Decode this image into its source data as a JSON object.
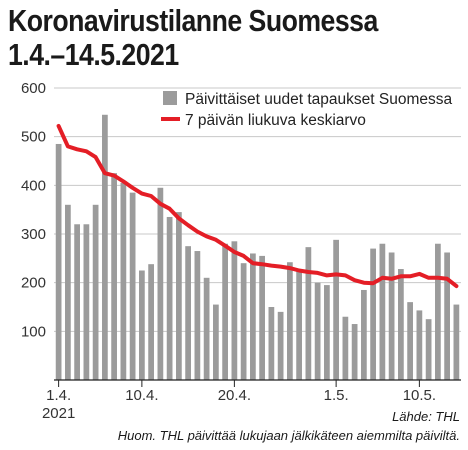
{
  "chart_data": {
    "type": "bar",
    "title_line1": "Koronavirustilanne Suomessa",
    "title_line2": "1.4.–14.5.2021",
    "yticks": [
      100,
      200,
      300,
      400,
      500,
      600
    ],
    "ylim": [
      0,
      600
    ],
    "xtick_labels": [
      {
        "index": 0,
        "text": "1.4."
      },
      {
        "index": 9,
        "text": "10.4."
      },
      {
        "index": 19,
        "text": "20.4."
      },
      {
        "index": 30,
        "text": "1.5."
      },
      {
        "index": 39,
        "text": "10.5."
      }
    ],
    "x_year_label": "2021",
    "legend_position": "top-right",
    "grid": true,
    "series": [
      {
        "name": "Päivittäiset uudet tapaukset Suomessa",
        "kind": "bar",
        "color": "#9b9b9b",
        "values": [
          485,
          360,
          320,
          320,
          360,
          545,
          425,
          405,
          385,
          225,
          238,
          395,
          335,
          345,
          275,
          265,
          210,
          155,
          280,
          285,
          240,
          260,
          255,
          150,
          140,
          242,
          225,
          273,
          200,
          195,
          288,
          130,
          115,
          185,
          270,
          280,
          262,
          228,
          160,
          143,
          125,
          280,
          262,
          155
        ]
      },
      {
        "name": "7 päivän liukuva keskiarvo",
        "kind": "line",
        "color": "#e41e26",
        "values": [
          522,
          480,
          474,
          470,
          458,
          425,
          420,
          408,
          395,
          383,
          378,
          362,
          352,
          332,
          318,
          305,
          295,
          288,
          276,
          263,
          255,
          240,
          238,
          235,
          233,
          230,
          225,
          222,
          220,
          215,
          217,
          215,
          205,
          200,
          199,
          210,
          208,
          213,
          213,
          218,
          210,
          210,
          208,
          193
        ]
      }
    ]
  },
  "source_text": "Lähde: THL",
  "note_text": "Huom. THL päivittää lukujaan jälkikäteen aiemmilta päiviltä."
}
